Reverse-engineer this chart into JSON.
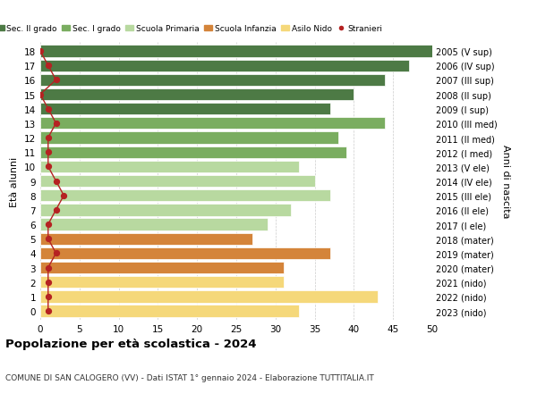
{
  "ages": [
    18,
    17,
    16,
    15,
    14,
    13,
    12,
    11,
    10,
    9,
    8,
    7,
    6,
    5,
    4,
    3,
    2,
    1,
    0
  ],
  "labels_right": [
    "2005 (V sup)",
    "2006 (IV sup)",
    "2007 (III sup)",
    "2008 (II sup)",
    "2009 (I sup)",
    "2010 (III med)",
    "2011 (II med)",
    "2012 (I med)",
    "2013 (V ele)",
    "2014 (IV ele)",
    "2015 (III ele)",
    "2016 (II ele)",
    "2017 (I ele)",
    "2018 (mater)",
    "2019 (mater)",
    "2020 (mater)",
    "2021 (nido)",
    "2022 (nido)",
    "2023 (nido)"
  ],
  "bar_values": [
    50,
    47,
    44,
    40,
    37,
    44,
    38,
    39,
    33,
    35,
    37,
    32,
    29,
    27,
    37,
    31,
    31,
    43,
    33
  ],
  "bar_colors": [
    "#4d7a45",
    "#4d7a45",
    "#4d7a45",
    "#4d7a45",
    "#4d7a45",
    "#7aad60",
    "#7aad60",
    "#7aad60",
    "#b8d9a0",
    "#b8d9a0",
    "#b8d9a0",
    "#b8d9a0",
    "#b8d9a0",
    "#d4843a",
    "#d4843a",
    "#d4843a",
    "#f5d87a",
    "#f5d87a",
    "#f5d87a"
  ],
  "stranieri_values": [
    0,
    1,
    2,
    0,
    1,
    2,
    1,
    1,
    1,
    2,
    3,
    2,
    1,
    1,
    2,
    1,
    1,
    1,
    1
  ],
  "title": "Popolazione per età scolastica - 2024",
  "subtitle": "COMUNE DI SAN CALOGERO (VV) - Dati ISTAT 1° gennaio 2024 - Elaborazione TUTTITALIA.IT",
  "ylabel": "Età alunni",
  "ylabel_right": "Anni di nascita",
  "xlim": [
    0,
    50
  ],
  "xticks": [
    0,
    5,
    10,
    15,
    20,
    25,
    30,
    35,
    40,
    45,
    50
  ],
  "legend_labels": [
    "Sec. II grado",
    "Sec. I grado",
    "Scuola Primaria",
    "Scuola Infanzia",
    "Asilo Nido",
    "Stranieri"
  ],
  "legend_colors": [
    "#4d7a45",
    "#7aad60",
    "#b8d9a0",
    "#d4843a",
    "#f5d87a",
    "#b52222"
  ],
  "stranieri_color": "#b52222",
  "bg_color": "#ffffff",
  "bar_height": 0.82,
  "grid_color": "#cccccc"
}
